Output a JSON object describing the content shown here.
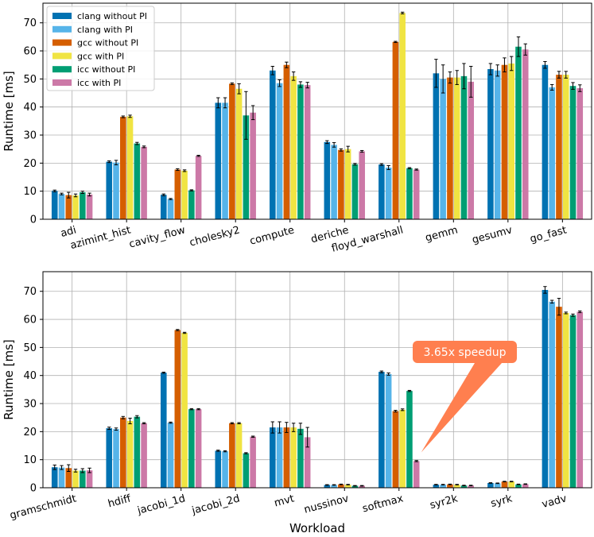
{
  "colors": {
    "clang_without_pi": "#0072B2",
    "clang_with_pi": "#56B4E9",
    "gcc_without_pi": "#D55E00",
    "gcc_with_pi": "#F0E442",
    "icc_without_pi": "#009E73",
    "icc_with_pi": "#CC79A7",
    "callout": "#FF7F4F"
  },
  "chart_data": [
    {
      "type": "bar",
      "ylabel": "Runtime [ms]",
      "xlabel": "",
      "ylim": [
        0,
        77
      ],
      "yticks": [
        0,
        10,
        20,
        30,
        40,
        50,
        60,
        70
      ],
      "grid": true,
      "legend": "top-left",
      "categories": [
        "adi",
        "azimint_hist",
        "cavity_flow",
        "cholesky2",
        "compute",
        "deriche",
        "floyd_warshall",
        "gemm",
        "gesumv",
        "go_fast"
      ],
      "series": [
        {
          "name": "clang without PI",
          "values": [
            10.1,
            20.5,
            8.7,
            41.5,
            53.0,
            27.5,
            19.5,
            52.0,
            53.5,
            55.0
          ],
          "errors": [
            0.3,
            0.3,
            0.3,
            1.8,
            1.5,
            0.5,
            0.3,
            5.0,
            2.0,
            1.2
          ]
        },
        {
          "name": "clang with PI",
          "values": [
            9.0,
            20.2,
            7.2,
            41.5,
            48.5,
            26.5,
            18.4,
            50.0,
            53.0,
            47.0
          ],
          "errors": [
            0.3,
            0.8,
            0.2,
            1.8,
            1.2,
            0.8,
            0.7,
            5.0,
            2.0,
            1.0
          ]
        },
        {
          "name": "gcc without PI",
          "values": [
            8.6,
            36.5,
            17.7,
            48.3,
            55.0,
            24.7,
            63.2,
            50.5,
            55.0,
            51.5
          ],
          "errors": [
            1.0,
            0.3,
            0.3,
            0.3,
            1.0,
            0.4,
            0.2,
            2.0,
            2.5,
            1.2
          ]
        },
        {
          "name": "gcc with PI",
          "values": [
            8.5,
            36.7,
            17.3,
            46.5,
            51.0,
            25.0,
            73.5,
            50.5,
            55.5,
            51.5
          ],
          "errors": [
            0.5,
            0.4,
            0.3,
            1.8,
            1.5,
            1.0,
            0.3,
            2.5,
            2.5,
            1.2
          ]
        },
        {
          "name": "icc without PI",
          "values": [
            9.6,
            27.0,
            10.3,
            37.0,
            48.0,
            19.6,
            18.2,
            51.0,
            61.5,
            47.5
          ],
          "errors": [
            0.4,
            0.4,
            0.2,
            8.5,
            1.0,
            0.3,
            0.2,
            4.5,
            3.5,
            1.2
          ]
        },
        {
          "name": "icc with PI",
          "values": [
            8.8,
            25.8,
            22.6,
            38.0,
            47.8,
            24.2,
            17.7,
            49.0,
            60.5,
            46.7
          ],
          "errors": [
            0.5,
            0.3,
            0.2,
            2.5,
            1.0,
            0.3,
            0.2,
            5.5,
            2.0,
            1.2
          ]
        }
      ]
    },
    {
      "type": "bar",
      "ylabel": "Runtime [ms]",
      "xlabel": "Workload",
      "ylim": [
        0,
        77
      ],
      "yticks": [
        0,
        10,
        20,
        30,
        40,
        50,
        60,
        70
      ],
      "grid": true,
      "categories": [
        "gramschmidt",
        "hdiff",
        "jacobi_1d",
        "jacobi_2d",
        "mvt",
        "nussinov",
        "softmax",
        "syr2k",
        "syrk",
        "vadv"
      ],
      "series": [
        {
          "name": "clang without PI",
          "values": [
            7.3,
            21.2,
            41.0,
            13.2,
            21.5,
            1.0,
            41.3,
            1.1,
            1.7,
            70.5
          ],
          "errors": [
            0.8,
            0.4,
            0.2,
            0.2,
            2.0,
            0.1,
            0.3,
            0.1,
            0.1,
            1.2
          ]
        },
        {
          "name": "clang with PI",
          "values": [
            7.2,
            20.9,
            23.2,
            13.0,
            21.5,
            1.0,
            40.5,
            1.1,
            1.6,
            66.3
          ],
          "errors": [
            0.7,
            0.4,
            0.2,
            0.2,
            2.0,
            0.1,
            0.4,
            0.1,
            0.1,
            0.5
          ]
        },
        {
          "name": "gcc without PI",
          "values": [
            7.0,
            25.0,
            56.2,
            23.0,
            21.5,
            1.2,
            27.3,
            1.2,
            2.2,
            64.5
          ],
          "errors": [
            1.2,
            0.4,
            0.2,
            0.2,
            1.8,
            0.1,
            0.3,
            0.1,
            0.1,
            3.0
          ]
        },
        {
          "name": "gcc with PI",
          "values": [
            6.1,
            23.8,
            55.2,
            23.0,
            21.5,
            1.1,
            27.8,
            1.1,
            2.2,
            62.3
          ],
          "errors": [
            0.5,
            1.0,
            0.2,
            0.2,
            1.5,
            0.1,
            0.3,
            0.1,
            0.1,
            0.3
          ]
        },
        {
          "name": "icc without PI",
          "values": [
            6.1,
            25.3,
            28.0,
            12.3,
            21.0,
            0.7,
            34.5,
            0.8,
            1.2,
            61.5
          ],
          "errors": [
            0.7,
            0.4,
            0.2,
            0.2,
            2.0,
            0.1,
            0.2,
            0.1,
            0.1,
            0.4
          ]
        },
        {
          "name": "icc with PI",
          "values": [
            6.2,
            23.0,
            28.0,
            18.2,
            18.0,
            0.7,
            9.5,
            0.8,
            1.3,
            62.7
          ],
          "errors": [
            0.8,
            0.2,
            0.2,
            0.2,
            3.5,
            0.1,
            0.2,
            0.1,
            0.1,
            0.3
          ]
        }
      ],
      "annotation": {
        "text": "3.65x speedup",
        "category": "softmax",
        "series": "icc with PI"
      }
    }
  ]
}
